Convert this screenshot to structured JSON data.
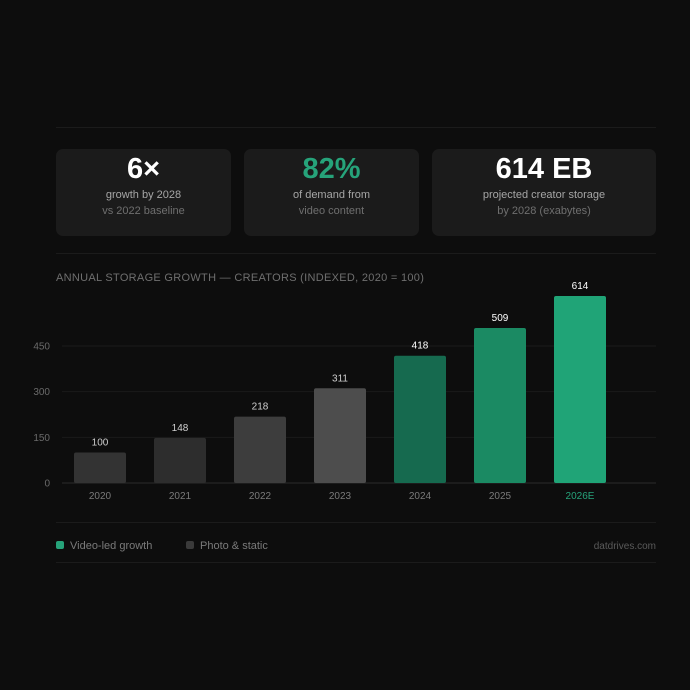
{
  "stats": [
    {
      "value": "6×",
      "line1": "growth by 2028",
      "line2": "vs 2022 baseline",
      "value_color": "#ffffff"
    },
    {
      "value": "82%",
      "line1": "of demand from",
      "line2": "video content",
      "value_color": "#26a37a"
    },
    {
      "value": "614 EB",
      "line1": "projected creator storage",
      "line2": "by 2028 (exabytes)",
      "value_color": "#ffffff"
    }
  ],
  "chart_data": {
    "type": "bar",
    "title": "ANNUAL STORAGE GROWTH — CREATORS  (INDEXED, 2020 = 100)",
    "categories": [
      "2020",
      "2021",
      "2022",
      "2023",
      "2024",
      "2025",
      "2026E"
    ],
    "values": [
      100,
      148,
      218,
      311,
      418,
      509,
      614
    ],
    "value_labels": [
      "100",
      "148",
      "218",
      "311",
      "418",
      "509",
      "614"
    ],
    "bar_colors": [
      "#333333",
      "#2d2d2d",
      "#3d3d3d",
      "#4d4d4d",
      "#166a4f",
      "#1b8a63",
      "#20a477"
    ],
    "highlight_category": "2026E",
    "highlight_color": "#26a37a",
    "yticks": [
      0,
      150,
      300,
      450
    ],
    "ytick_labels": [
      "0",
      "150",
      "300",
      "450"
    ],
    "ylim": [
      0,
      614
    ],
    "grid": true,
    "legend_position": "bottom-left"
  },
  "legend": [
    {
      "label": "Video-led growth",
      "color": "#26a37a"
    },
    {
      "label": "Photo & static",
      "color": "#3a3a3a"
    }
  ],
  "source": "datdrives.com"
}
